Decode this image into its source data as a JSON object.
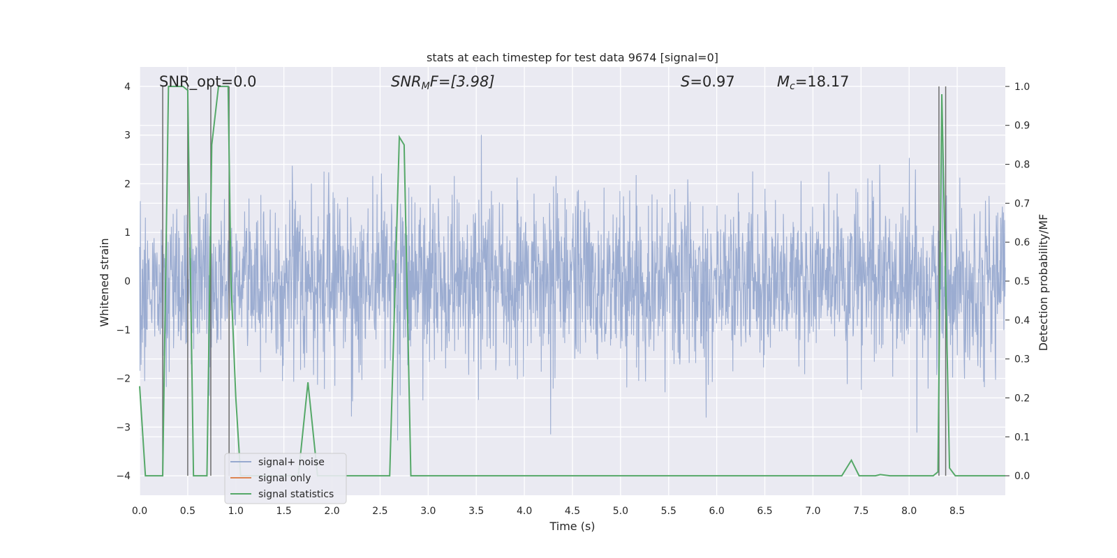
{
  "chart_data": {
    "type": "line",
    "title": "stats at each timestep for test data 9674 [signal=0]",
    "xlabel": "Time (s)",
    "ylabel_left": "Whitened strain",
    "ylabel_right": "Detection probability/MF",
    "xlim": [
      0.0,
      9.0
    ],
    "ylim_left": [
      -4.4,
      4.4
    ],
    "ylim_right": [
      -0.05,
      1.05
    ],
    "x_ticks": [
      "0.0",
      "0.5",
      "1.0",
      "1.5",
      "2.0",
      "2.5",
      "3.0",
      "3.5",
      "4.0",
      "4.5",
      "5.0",
      "5.5",
      "6.0",
      "6.5",
      "7.0",
      "7.5",
      "8.0",
      "8.5"
    ],
    "y_left_ticks": [
      "4",
      "3",
      "2",
      "1",
      "0",
      "−1",
      "−2",
      "−3",
      "−4"
    ],
    "y_right_ticks": [
      "1.0",
      "0.9",
      "0.8",
      "0.7",
      "0.6",
      "0.5",
      "0.4",
      "0.3",
      "0.2",
      "0.1",
      "0.0"
    ],
    "grid": true,
    "legend_position": "lower-left",
    "annotations": {
      "snr_opt": "SNR_opt=0.0",
      "snr_mf_prefix": "SNR",
      "snr_mf_sub": "M",
      "snr_mf_suffix": "F=[3.98]",
      "s_var": "S",
      "s_value": "=0.97",
      "mc_var": "M",
      "mc_sub": "c",
      "mc_value": "=18.17"
    },
    "series": [
      {
        "name": "signal+ noise",
        "color": "#97a9cf",
        "style": "noise",
        "std": 0.85,
        "range": [
          -4.0,
          4.0
        ]
      },
      {
        "name": "signal only",
        "color": "#dd8452",
        "values": []
      },
      {
        "name": "signal statistics",
        "color": "#55a868",
        "x": [
          0.0,
          0.06,
          0.1,
          0.2,
          0.24,
          0.3,
          0.45,
          0.5,
          0.56,
          0.6,
          0.7,
          0.75,
          0.82,
          0.92,
          0.95,
          1.0,
          1.05,
          1.1,
          1.55,
          1.65,
          1.75,
          1.85,
          2.0,
          2.5,
          2.6,
          2.7,
          2.75,
          2.82,
          2.86,
          3.0,
          4.0,
          5.0,
          6.0,
          7.0,
          7.3,
          7.4,
          7.48,
          7.55,
          7.65,
          7.7,
          7.8,
          8.0,
          8.25,
          8.3,
          8.34,
          8.38,
          8.42,
          8.48,
          8.6,
          9.0
        ],
        "values": [
          0.23,
          0.0,
          0.0,
          0.0,
          0.0,
          1.0,
          1.0,
          0.99,
          0.0,
          0.0,
          0.0,
          0.85,
          1.0,
          1.0,
          0.5,
          0.2,
          0.0,
          0.0,
          0.0,
          0.0,
          0.24,
          0.0,
          0.0,
          0.0,
          0.0,
          0.87,
          0.85,
          0.0,
          0.0,
          0.0,
          0.0,
          0.0,
          0.0,
          0.0,
          0.0,
          0.04,
          0.0,
          0.0,
          0.0,
          0.003,
          0.0,
          0.0,
          0.0,
          0.01,
          0.98,
          0.5,
          0.02,
          0.0,
          0.0,
          0.0
        ]
      },
      {
        "name": "detection markers",
        "color": "#6b6b6b",
        "style": "vlines",
        "x": [
          0.24,
          0.5,
          0.74,
          0.93,
          8.31,
          8.38
        ],
        "y_top": 4.0,
        "y_bottom": -4.0
      }
    ]
  }
}
